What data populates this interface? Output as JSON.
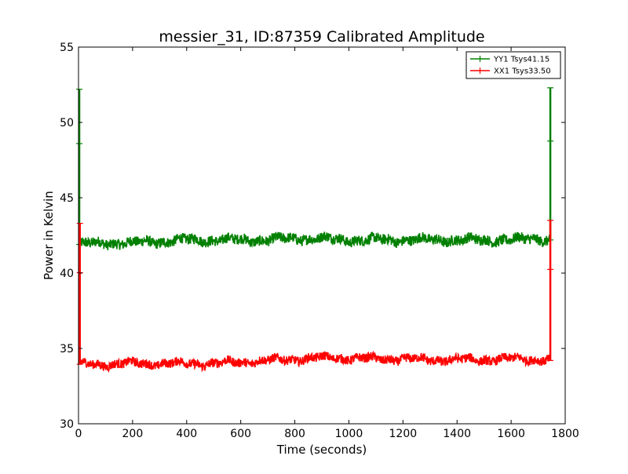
{
  "chart_data": {
    "type": "line",
    "title": "messier_31, ID:87359 Calibrated Amplitude",
    "xlabel": "Time (seconds)",
    "ylabel": "Power in Kelvin",
    "xlim": [
      0,
      1800
    ],
    "ylim": [
      30,
      55
    ],
    "x_ticks": [
      0,
      200,
      400,
      600,
      800,
      1000,
      1200,
      1400,
      1600,
      1800
    ],
    "y_ticks": [
      30,
      35,
      40,
      45,
      50,
      55
    ],
    "grid": false,
    "legend_position": "top-right",
    "series": [
      {
        "name": "YY1 Tsys41.15",
        "color": "#008000",
        "marker": "+",
        "baseline": [
          [
            5,
            41.9
          ],
          [
            100,
            42.0
          ],
          [
            200,
            42.0
          ],
          [
            300,
            42.1
          ],
          [
            400,
            42.2
          ],
          [
            500,
            42.2
          ],
          [
            600,
            42.2
          ],
          [
            700,
            42.2
          ],
          [
            800,
            42.3
          ],
          [
            900,
            42.3
          ],
          [
            1000,
            42.2
          ],
          [
            1100,
            42.2
          ],
          [
            1200,
            42.2
          ],
          [
            1300,
            42.2
          ],
          [
            1400,
            42.2
          ],
          [
            1500,
            42.2
          ],
          [
            1600,
            42.2
          ],
          [
            1700,
            42.3
          ],
          [
            1745,
            42.2
          ]
        ],
        "band_halfwidth": 0.35,
        "spikes": [
          {
            "x": 3,
            "top": 52.2
          },
          {
            "x": 1745,
            "top": 52.3
          }
        ]
      },
      {
        "name": "XX1 Tsys33.50",
        "color": "#ff0000",
        "marker": "+",
        "baseline": [
          [
            5,
            33.95
          ],
          [
            100,
            33.95
          ],
          [
            200,
            34.0
          ],
          [
            300,
            34.0
          ],
          [
            400,
            34.0
          ],
          [
            500,
            34.0
          ],
          [
            600,
            34.1
          ],
          [
            700,
            34.2
          ],
          [
            800,
            34.3
          ],
          [
            900,
            34.35
          ],
          [
            950,
            34.4
          ],
          [
            1000,
            34.35
          ],
          [
            1100,
            34.3
          ],
          [
            1200,
            34.3
          ],
          [
            1300,
            34.25
          ],
          [
            1400,
            34.25
          ],
          [
            1500,
            34.25
          ],
          [
            1600,
            34.3
          ],
          [
            1700,
            34.3
          ],
          [
            1745,
            34.2
          ]
        ],
        "band_halfwidth": 0.3,
        "spikes": [
          {
            "x": 5,
            "top": 43.3
          },
          {
            "x": 1745,
            "top": 43.5
          }
        ]
      }
    ]
  }
}
